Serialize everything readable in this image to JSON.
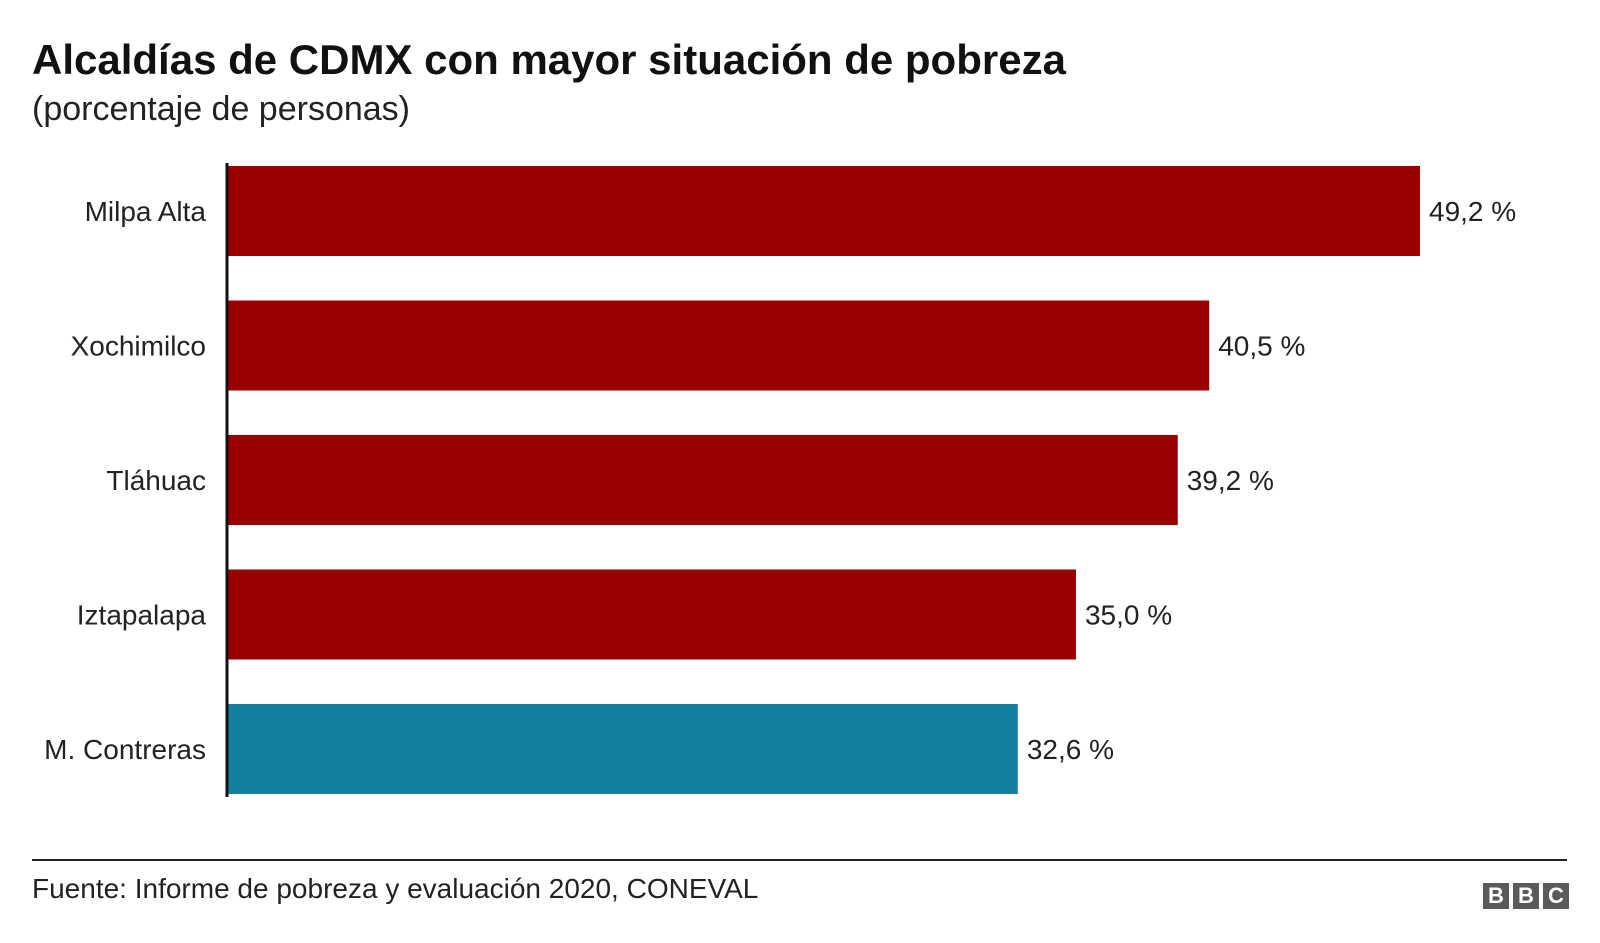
{
  "chart_data": {
    "type": "bar",
    "orientation": "horizontal",
    "title": "Alcaldías de CDMX con mayor situación de pobreza",
    "subtitle": "(porcentaje de personas)",
    "categories": [
      "Milpa Alta",
      "Xochimilco",
      "Tláhuac",
      "Iztapalapa",
      "M. Contreras"
    ],
    "values": [
      49.2,
      40.5,
      39.2,
      35.0,
      32.6
    ],
    "value_labels": [
      "49,2 %",
      "40,5 %",
      "39,2 %",
      "35,0 %",
      "32,6 %"
    ],
    "colors": [
      "#990000",
      "#990000",
      "#990000",
      "#990000",
      "#1380a1"
    ],
    "highlight_index": 4,
    "xlabel": "",
    "ylabel": "",
    "xlim": [
      0,
      49.2
    ],
    "grid": false,
    "legend": "none"
  },
  "footer": {
    "source": "Fuente: Informe de pobreza y evaluación 2020, CONEVAL",
    "logo_letters": [
      "B",
      "B",
      "C"
    ]
  }
}
